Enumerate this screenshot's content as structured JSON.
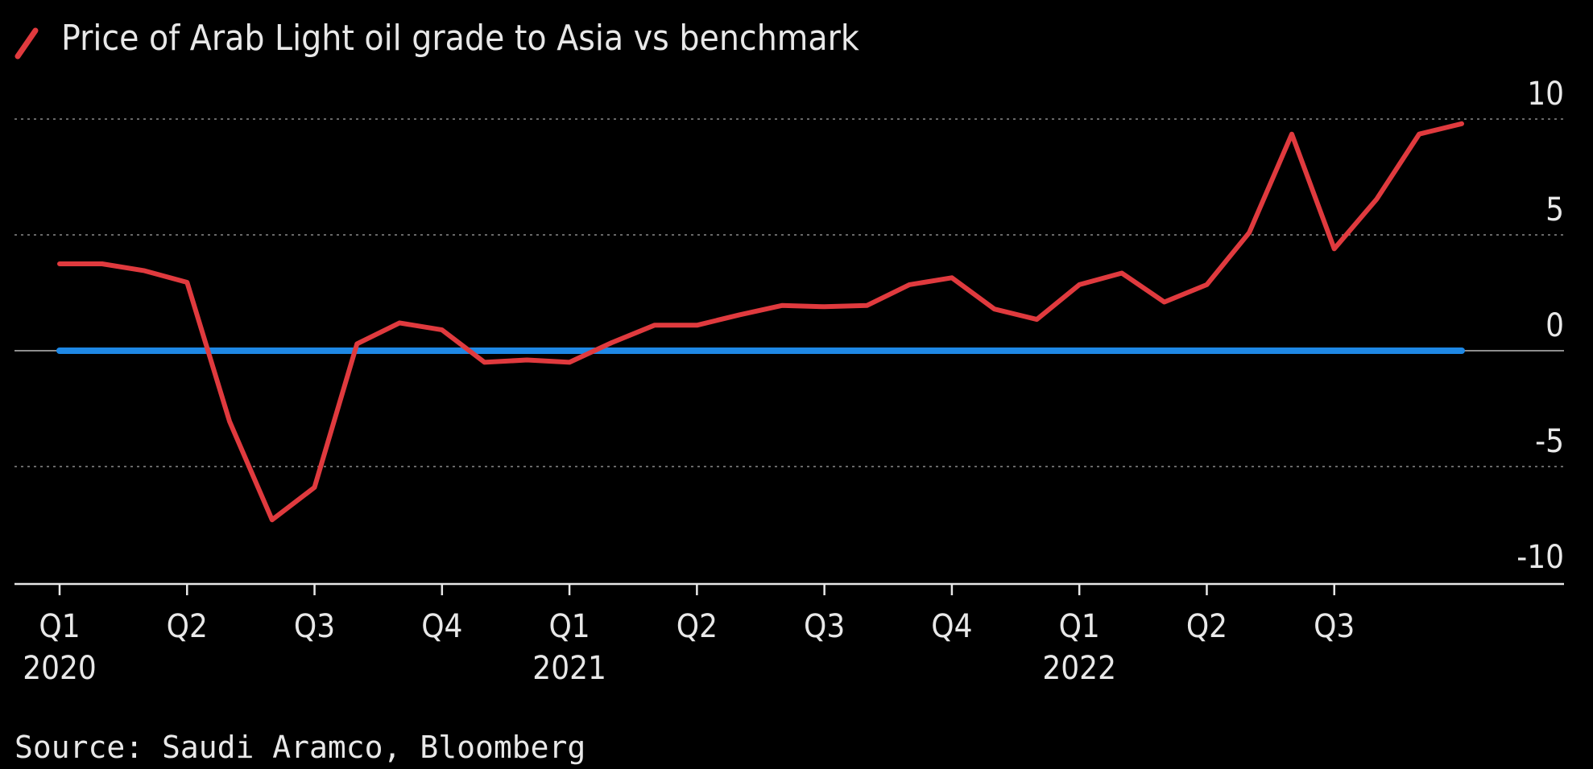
{
  "chart_data": {
    "type": "line",
    "title": "Price of Arab Light oil grade to Asia vs benchmark",
    "source": "Source: Saudi Aramco, Bloomberg",
    "ylim": [
      -10,
      10
    ],
    "y_ticks": [
      {
        "value": 10,
        "label": "10"
      },
      {
        "value": 5,
        "label": "5"
      },
      {
        "value": 0,
        "label": "0"
      },
      {
        "value": -5,
        "label": "-5"
      },
      {
        "value": -10,
        "label": "-10"
      }
    ],
    "x_ticks": [
      {
        "index": 0,
        "label": "Q1",
        "year": "2020"
      },
      {
        "index": 3,
        "label": "Q2",
        "year": ""
      },
      {
        "index": 6,
        "label": "Q3",
        "year": ""
      },
      {
        "index": 9,
        "label": "Q4",
        "year": ""
      },
      {
        "index": 12,
        "label": "Q1",
        "year": "2021"
      },
      {
        "index": 15,
        "label": "Q2",
        "year": ""
      },
      {
        "index": 18,
        "label": "Q3",
        "year": ""
      },
      {
        "index": 21,
        "label": "Q4",
        "year": ""
      },
      {
        "index": 24,
        "label": "Q1",
        "year": "2022"
      },
      {
        "index": 27,
        "label": "Q2",
        "year": ""
      },
      {
        "index": 30,
        "label": "Q3",
        "year": ""
      }
    ],
    "grid": true,
    "series": [
      {
        "name": "Price of Arab Light oil grade to Asia vs benchmark",
        "color": "#e03a3e",
        "values": [
          3.75,
          3.75,
          3.45,
          2.95,
          -3.05,
          -7.3,
          -5.9,
          0.3,
          1.2,
          0.9,
          -0.5,
          -0.4,
          -0.5,
          0.35,
          1.1,
          1.1,
          1.55,
          1.95,
          1.9,
          1.95,
          2.85,
          3.15,
          1.8,
          1.35,
          2.85,
          3.35,
          2.1,
          2.85,
          5.1,
          9.35,
          4.4,
          6.55,
          9.35,
          9.8
        ]
      },
      {
        "name": "",
        "color": "#1e88e5",
        "values": [
          0,
          0,
          0,
          0,
          0,
          0,
          0,
          0,
          0,
          0,
          0,
          0,
          0,
          0,
          0,
          0,
          0,
          0,
          0,
          0,
          0,
          0,
          0,
          0,
          0,
          0,
          0,
          0,
          0,
          0,
          0,
          0,
          0,
          0
        ]
      }
    ]
  }
}
